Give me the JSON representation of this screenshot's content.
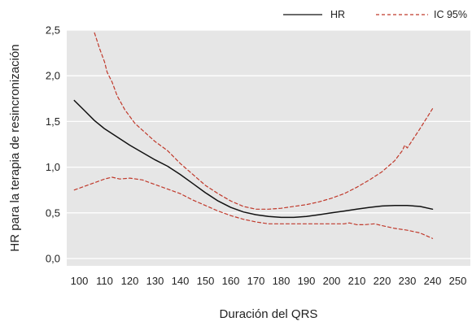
{
  "chart_data": {
    "type": "line",
    "title": "",
    "xlabel": "Duración del QRS",
    "ylabel": "HR para la terapia de resincronización",
    "xlim": [
      95,
      255
    ],
    "ylim": [
      -0.08,
      2.5
    ],
    "xticks": [
      100,
      110,
      120,
      130,
      140,
      150,
      160,
      170,
      180,
      190,
      200,
      210,
      220,
      230,
      240,
      250
    ],
    "yticks": [
      0.0,
      0.5,
      1.0,
      1.5,
      2.0,
      2.5
    ],
    "ytick_labels": [
      "0,0",
      "0,5",
      "1,0",
      "1,5",
      "2,0",
      "2,5"
    ],
    "grid": "horizontal",
    "background": "#e6e6e6",
    "legend_position": "top-right",
    "series": [
      {
        "name": "HR",
        "color": "#111111",
        "style": "solid",
        "x": [
          98,
          102,
          106,
          110,
          115,
          120,
          125,
          130,
          135,
          140,
          145,
          150,
          155,
          160,
          165,
          170,
          175,
          180,
          185,
          190,
          195,
          200,
          205,
          210,
          215,
          220,
          225,
          230,
          235,
          240
        ],
        "y": [
          1.73,
          1.62,
          1.51,
          1.42,
          1.33,
          1.24,
          1.16,
          1.08,
          1.01,
          0.92,
          0.82,
          0.72,
          0.63,
          0.56,
          0.51,
          0.48,
          0.46,
          0.45,
          0.45,
          0.46,
          0.48,
          0.5,
          0.52,
          0.54,
          0.56,
          0.575,
          0.58,
          0.58,
          0.57,
          0.54
        ]
      },
      {
        "name": "IC 95%",
        "color": "#c0392b",
        "style": "dashed",
        "x": [
          106,
          108,
          110,
          111,
          113,
          115,
          118,
          122,
          126,
          130,
          135,
          140,
          145,
          150,
          155,
          160,
          165,
          170,
          175,
          180,
          185,
          190,
          195,
          200,
          205,
          210,
          215,
          220,
          225,
          228,
          229,
          230,
          235,
          240
        ],
        "y": [
          2.47,
          2.3,
          2.15,
          2.04,
          1.93,
          1.78,
          1.63,
          1.48,
          1.38,
          1.28,
          1.18,
          1.04,
          0.92,
          0.8,
          0.71,
          0.63,
          0.57,
          0.54,
          0.54,
          0.55,
          0.57,
          0.59,
          0.62,
          0.66,
          0.71,
          0.78,
          0.86,
          0.95,
          1.07,
          1.18,
          1.24,
          1.21,
          1.42,
          1.64
        ]
      },
      {
        "name": "IC 95%",
        "color": "#c0392b",
        "style": "dashed",
        "x": [
          98,
          102,
          106,
          110,
          113,
          116,
          120,
          125,
          130,
          135,
          140,
          145,
          150,
          155,
          160,
          165,
          170,
          175,
          180,
          185,
          190,
          195,
          200,
          205,
          207,
          210,
          213,
          217,
          220,
          225,
          230,
          235,
          240
        ],
        "y": [
          0.75,
          0.79,
          0.83,
          0.87,
          0.89,
          0.87,
          0.88,
          0.86,
          0.81,
          0.76,
          0.71,
          0.64,
          0.58,
          0.52,
          0.47,
          0.43,
          0.4,
          0.38,
          0.38,
          0.38,
          0.38,
          0.38,
          0.38,
          0.38,
          0.39,
          0.37,
          0.37,
          0.38,
          0.36,
          0.33,
          0.31,
          0.28,
          0.22
        ]
      }
    ]
  }
}
